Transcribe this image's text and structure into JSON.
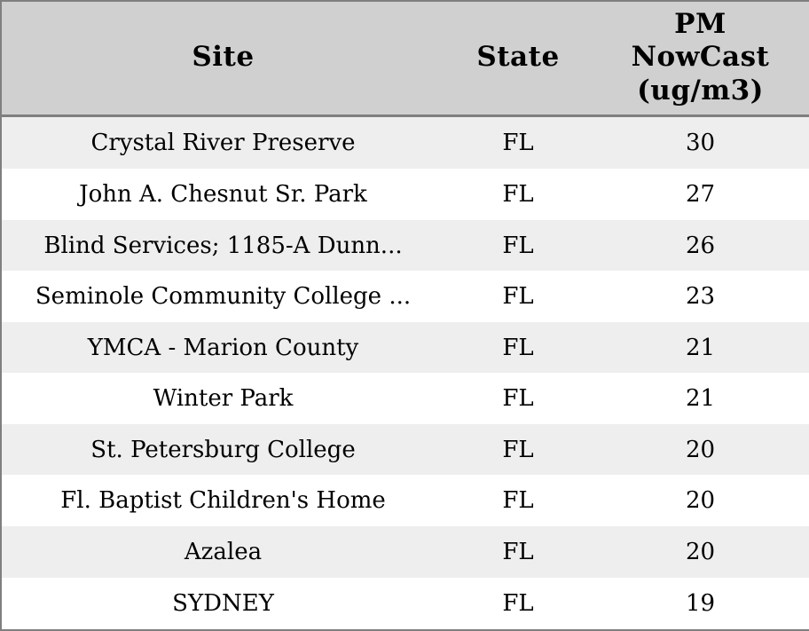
{
  "table": {
    "columns": [
      {
        "id": "site",
        "label": "Site"
      },
      {
        "id": "state",
        "label": "State"
      },
      {
        "id": "pm",
        "label": "PM NowCast (ug/m3)"
      }
    ],
    "rows": [
      {
        "site": "Crystal River Preserve",
        "state": "FL",
        "pm": "30"
      },
      {
        "site": "John A. Chesnut Sr. Park",
        "state": "FL",
        "pm": "27"
      },
      {
        "site": "Blind Services; 1185-A Dunn...",
        "state": "FL",
        "pm": "26"
      },
      {
        "site": "Seminole Community College ...",
        "state": "FL",
        "pm": "23"
      },
      {
        "site": "YMCA - Marion County",
        "state": "FL",
        "pm": "21"
      },
      {
        "site": "Winter Park",
        "state": "FL",
        "pm": "21"
      },
      {
        "site": "St. Petersburg College",
        "state": "FL",
        "pm": "20"
      },
      {
        "site": "Fl. Baptist Children's Home",
        "state": "FL",
        "pm": "20"
      },
      {
        "site": "Azalea",
        "state": "FL",
        "pm": "20"
      },
      {
        "site": "SYDNEY",
        "state": "FL",
        "pm": "19"
      }
    ],
    "colors": {
      "header_bg": "#d0d0d0",
      "row_alt_bg": "#eeeeee",
      "row_bg": "#ffffff",
      "border": "#7f7f7f",
      "text": "#000000"
    }
  },
  "chart_data": {
    "type": "table",
    "columns": [
      "Site",
      "State",
      "PM NowCast (ug/m3)"
    ],
    "rows": [
      [
        "Crystal River Preserve",
        "FL",
        30
      ],
      [
        "John A. Chesnut Sr. Park",
        "FL",
        27
      ],
      [
        "Blind Services; 1185-A Dunn...",
        "FL",
        26
      ],
      [
        "Seminole Community College ...",
        "FL",
        23
      ],
      [
        "YMCA - Marion County",
        "FL",
        21
      ],
      [
        "Winter Park",
        "FL",
        21
      ],
      [
        "St. Petersburg College",
        "FL",
        20
      ],
      [
        "Fl. Baptist Children's Home",
        "FL",
        20
      ],
      [
        "Azalea",
        "FL",
        20
      ],
      [
        "SYDNEY",
        "FL",
        19
      ]
    ]
  }
}
